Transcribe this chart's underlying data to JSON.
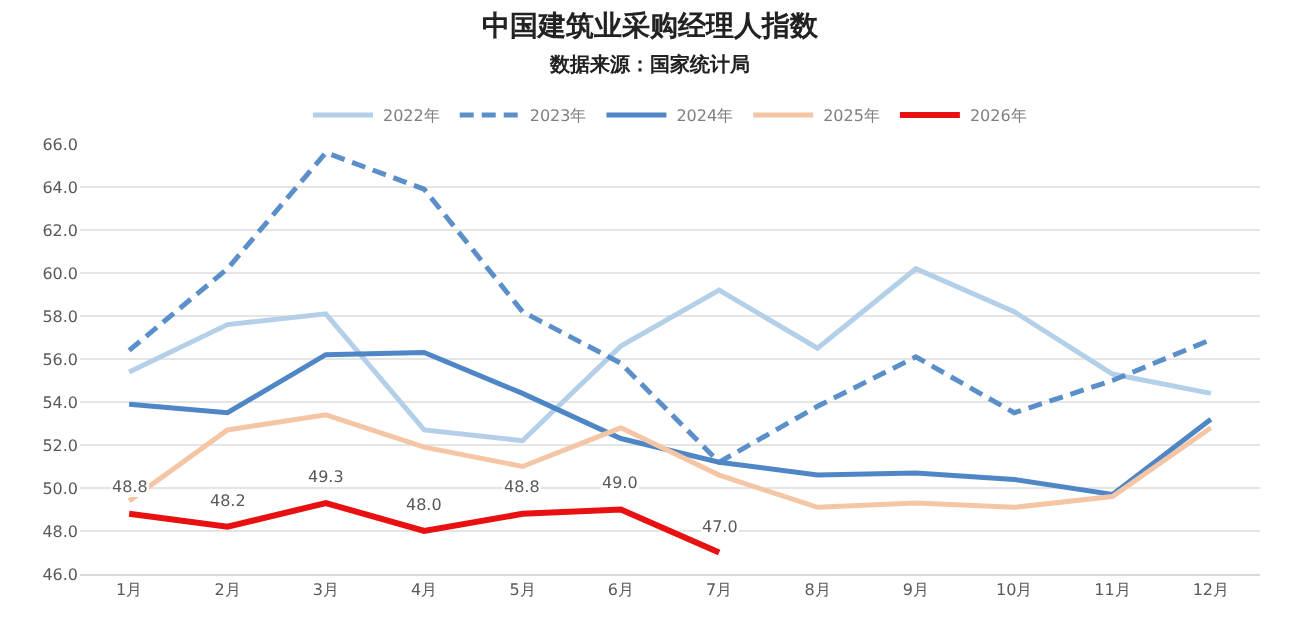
{
  "chart_data": {
    "type": "line",
    "title": "中国建筑业采购经理人指数",
    "subtitle": "数据来源：国家统计局",
    "categories": [
      "1月",
      "2月",
      "3月",
      "4月",
      "5月",
      "6月",
      "7月",
      "8月",
      "9月",
      "10月",
      "11月",
      "12月"
    ],
    "series": [
      {
        "name": "2022年",
        "color": "#b4cfe8",
        "values": [
          55.4,
          57.6,
          58.1,
          52.7,
          52.2,
          56.6,
          59.2,
          56.5,
          60.2,
          58.2,
          55.3,
          54.4
        ]
      },
      {
        "name": "2023年",
        "color": "#5b8fc9",
        "line_style": "dashed",
        "values": [
          56.4,
          60.2,
          65.6,
          63.9,
          58.2,
          55.8,
          51.2,
          53.8,
          56.1,
          53.5,
          55.0,
          56.9
        ]
      },
      {
        "name": "2024年",
        "color": "#4f86c6",
        "values": [
          53.9,
          53.5,
          56.2,
          56.3,
          54.4,
          52.3,
          51.2,
          50.6,
          50.7,
          50.4,
          49.7,
          53.2
        ]
      },
      {
        "name": "2025年",
        "color": "#f5c6a5",
        "values": [
          49.4,
          52.7,
          53.4,
          51.9,
          51.0,
          52.8,
          50.6,
          49.1,
          49.3,
          49.1,
          49.6,
          52.8
        ]
      },
      {
        "name": "2026年",
        "color": "#e81010",
        "values": [
          48.8,
          48.2,
          49.3,
          48.0,
          48.8,
          49.0,
          47.0,
          null,
          null,
          null,
          null,
          null
        ],
        "value_labels": [
          "48.8",
          "48.2",
          "49.3",
          "48.0",
          "48.8",
          "49.0",
          "47.0",
          null,
          null,
          null,
          null,
          null
        ]
      }
    ],
    "ylim": [
      46,
      66
    ],
    "yticks": [
      {
        "value": 46,
        "label": "46.0"
      },
      {
        "value": 48,
        "label": "48.0"
      },
      {
        "value": 50,
        "label": "50.0"
      },
      {
        "value": 52,
        "label": "52.0"
      },
      {
        "value": 54,
        "label": "54.0"
      },
      {
        "value": 56,
        "label": "56.0"
      },
      {
        "value": 58,
        "label": "58.0"
      },
      {
        "value": 60,
        "label": "60.0"
      },
      {
        "value": 62,
        "label": "62.0"
      },
      {
        "value": 64,
        "label": "64.0"
      },
      {
        "value": 66,
        "label": "66.0"
      }
    ],
    "grid": "y",
    "legend": "top",
    "marker": "none",
    "line_style": "solid"
  }
}
